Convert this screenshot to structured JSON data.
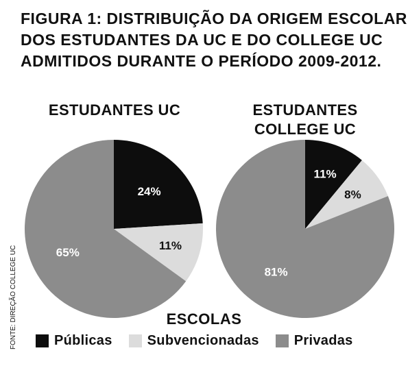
{
  "title_lines": [
    "FIGURA 1: DISTRIBUIÇÃO DA ORIGEM ESCOLAR",
    "DOS ESTUDANTES DA UC E DO COLLEGE UC",
    "ADMITIDOS DURANTE O PERÍODO 2009-2012."
  ],
  "legend": {
    "title": "ESCOLAS",
    "items": [
      {
        "label": "Públicas",
        "color": "#0d0d0d"
      },
      {
        "label": "Subvencionadas",
        "color": "#dcdcdc"
      },
      {
        "label": "Privadas",
        "color": "#8c8c8c"
      }
    ]
  },
  "source": "FONTE: DIREÇÃO COLLEGE UC",
  "chart_data": [
    {
      "type": "pie",
      "title_lines": [
        "ESTUDANTES UC"
      ],
      "slices": [
        {
          "category": "Públicas",
          "value": 24,
          "label": "24%"
        },
        {
          "category": "Subvencionadas",
          "value": 11,
          "label": "11%"
        },
        {
          "category": "Privadas",
          "value": 65,
          "label": "65%"
        }
      ]
    },
    {
      "type": "pie",
      "title_lines": [
        "ESTUDANTES",
        "COLLEGE UC"
      ],
      "slices": [
        {
          "category": "Públicas",
          "value": 11,
          "label": "11%"
        },
        {
          "category": "Subvencionadas",
          "value": 8,
          "label": "8%"
        },
        {
          "category": "Privadas",
          "value": 81,
          "label": "81%"
        }
      ]
    }
  ]
}
